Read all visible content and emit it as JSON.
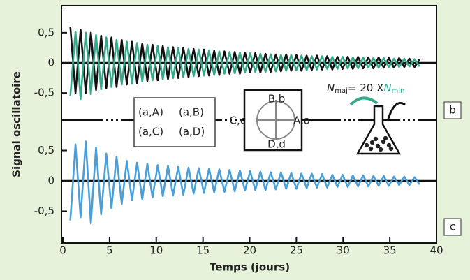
{
  "chart_data": [
    {
      "type": "line",
      "panel_label": "b",
      "x": [
        0.8,
        1.35,
        1.9,
        2.45,
        3.0,
        3.55,
        4.1,
        4.65,
        5.2,
        5.75,
        6.3,
        6.85,
        7.4,
        7.95,
        8.5,
        9.05,
        9.6,
        10.15,
        10.7,
        11.25,
        11.8,
        12.35,
        12.9,
        13.45,
        14.0,
        14.55,
        15.1,
        15.65,
        16.2,
        16.75,
        17.3,
        17.85,
        18.4,
        18.95,
        19.5,
        20.05,
        20.6,
        21.15,
        21.7,
        22.25,
        22.8,
        23.35,
        23.9,
        24.45,
        25.0,
        25.55,
        26.1,
        26.65,
        27.2,
        27.75,
        28.3,
        28.85,
        29.4,
        29.95,
        30.5,
        31.05,
        31.6,
        32.15,
        32.7,
        33.25,
        33.8,
        34.35,
        34.9,
        35.45,
        36.0,
        36.55,
        37.1,
        37.65,
        38.2
      ],
      "series": [
        {
          "color": "#111111",
          "values": [
            0.6,
            -0.5,
            0.55,
            -0.5,
            0.5,
            -0.45,
            0.45,
            -0.42,
            0.42,
            -0.4,
            0.38,
            -0.36,
            0.35,
            -0.34,
            0.32,
            -0.3,
            0.3,
            -0.29,
            0.28,
            -0.27,
            0.26,
            -0.25,
            0.25,
            -0.24,
            0.23,
            -0.22,
            0.22,
            -0.21,
            0.2,
            -0.2,
            0.19,
            -0.18,
            0.18,
            -0.18,
            0.17,
            -0.16,
            0.16,
            -0.16,
            0.15,
            -0.15,
            0.14,
            -0.14,
            0.14,
            -0.13,
            0.13,
            -0.13,
            0.12,
            -0.12,
            0.12,
            -0.11,
            0.11,
            -0.11,
            0.1,
            -0.1,
            0.1,
            -0.1,
            0.1,
            -0.09,
            0.09,
            -0.09,
            0.09,
            -0.08,
            0.08,
            -0.08,
            0.08,
            -0.07,
            0.07,
            -0.07,
            0.06
          ]
        },
        {
          "color": "#35a98a",
          "values": [
            -0.55,
            0.52,
            -0.6,
            0.5,
            -0.52,
            0.46,
            -0.44,
            0.42,
            -0.4,
            0.38,
            -0.36,
            0.35,
            -0.34,
            0.33,
            -0.31,
            0.3,
            -0.29,
            0.28,
            -0.27,
            0.26,
            -0.25,
            0.25,
            -0.24,
            0.23,
            -0.22,
            0.22,
            -0.21,
            0.2,
            -0.2,
            0.19,
            -0.18,
            0.18,
            -0.17,
            0.17,
            -0.16,
            0.16,
            -0.15,
            0.15,
            -0.15,
            0.14,
            -0.14,
            0.13,
            -0.13,
            0.13,
            -0.12,
            0.12,
            -0.12,
            0.11,
            -0.11,
            0.11,
            -0.1,
            0.1,
            -0.1,
            0.1,
            -0.09,
            0.09,
            -0.09,
            0.09,
            -0.08,
            0.08,
            -0.08,
            0.08,
            -0.07,
            0.07,
            -0.07,
            0.07,
            -0.06,
            0.06,
            -0.06
          ]
        }
      ],
      "xlim": [
        0,
        40
      ],
      "ylim": [
        -0.95,
        0.95
      ],
      "yticks": [
        {
          "value": 0.5,
          "label": "0,5"
        },
        0,
        {
          "value": -0.5,
          "label": "-0,5"
        }
      ],
      "formula": {
        "n1": "N",
        "sub1": "maj",
        "mid": "= 20 X",
        "n2": "N",
        "sub2": "min"
      }
    },
    {
      "type": "line",
      "panel_label": "c",
      "x": [
        0.8,
        1.35,
        1.9,
        2.45,
        3.0,
        3.55,
        4.1,
        4.65,
        5.2,
        5.75,
        6.3,
        6.85,
        7.4,
        7.95,
        8.5,
        9.05,
        9.6,
        10.15,
        10.7,
        11.25,
        11.8,
        12.35,
        12.9,
        13.45,
        14.0,
        14.55,
        15.1,
        15.65,
        16.2,
        16.75,
        17.3,
        17.85,
        18.4,
        18.95,
        19.5,
        20.05,
        20.6,
        21.15,
        21.7,
        22.25,
        22.8,
        23.35,
        23.9,
        24.45,
        25.0,
        25.55,
        26.1,
        26.65,
        27.2,
        27.75,
        28.3,
        28.85,
        29.4,
        29.95,
        30.5,
        31.05,
        31.6,
        32.15,
        32.7,
        33.25,
        33.8,
        34.35,
        34.9,
        35.45,
        36.0,
        36.55,
        37.1,
        37.65,
        38.2
      ],
      "series": [
        {
          "color": "#4a9fd8",
          "values": [
            -0.65,
            0.6,
            -0.6,
            0.65,
            -0.7,
            0.55,
            -0.55,
            0.45,
            -0.45,
            0.4,
            -0.38,
            0.33,
            -0.32,
            0.3,
            -0.3,
            0.28,
            -0.27,
            0.26,
            -0.25,
            0.25,
            -0.24,
            0.23,
            -0.23,
            0.22,
            -0.21,
            0.21,
            -0.2,
            0.2,
            -0.19,
            0.19,
            -0.18,
            0.18,
            -0.17,
            0.17,
            -0.16,
            0.16,
            -0.15,
            0.15,
            -0.15,
            0.14,
            -0.14,
            0.14,
            -0.13,
            0.13,
            -0.13,
            0.12,
            -0.12,
            0.12,
            -0.11,
            0.11,
            -0.11,
            0.1,
            -0.1,
            0.1,
            -0.1,
            0.09,
            -0.09,
            0.09,
            -0.09,
            0.08,
            -0.08,
            0.08,
            -0.08,
            0.07,
            -0.07,
            0.07,
            -0.07,
            0.06,
            -0.06
          ]
        }
      ],
      "xlim": [
        0,
        40
      ],
      "ylim": [
        -1.0,
        1.0
      ],
      "xticks": [
        0,
        5,
        10,
        15,
        20,
        25,
        30,
        35,
        40
      ],
      "yticks": [
        {
          "value": 0.5,
          "label": "0,5"
        },
        0,
        {
          "value": -0.5,
          "label": "-0,5"
        }
      ],
      "xlabel": "Temps (jours)",
      "legend_labels": [
        {
          "text": "(a,A)",
          "color": "#3a8fd0"
        },
        {
          "text": "(a,B)",
          "color": "#c0309a"
        },
        {
          "text": "(a,C)",
          "color": "#8a5a3a"
        },
        {
          "text": "(a,D)",
          "color": "#4aae5a"
        }
      ],
      "inset_labels": {
        "top": {
          "text": "B,b",
          "color": "#c0309a"
        },
        "right": {
          "text": "A,a",
          "color": "#3a8fd0"
        },
        "left": {
          "text": "C,c",
          "color": "#8a5a3a"
        },
        "bottom": {
          "text": "D,d",
          "color": "#4aae5a"
        }
      }
    }
  ],
  "ylabel": "Signal oscillatoire"
}
